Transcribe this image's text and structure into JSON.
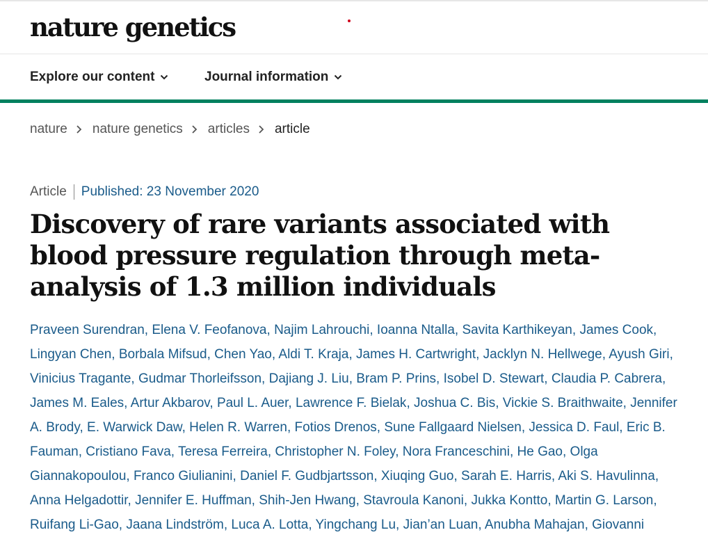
{
  "header": {
    "logo_text": "nature genetics"
  },
  "nav": {
    "items": [
      {
        "label": "Explore our content"
      },
      {
        "label": "Journal information"
      }
    ]
  },
  "breadcrumb": {
    "items": [
      {
        "label": "nature"
      },
      {
        "label": "nature genetics"
      },
      {
        "label": "articles"
      },
      {
        "label": "article"
      }
    ]
  },
  "article": {
    "type": "Article",
    "published": "Published: 23 November 2020",
    "title": "Discovery of rare variants associated with blood pressure regulation through meta-analysis of 1.3 million individuals",
    "authors": [
      "Praveen Surendran",
      "Elena V. Feofanova",
      "Najim Lahrouchi",
      "Ioanna Ntalla",
      "Savita Karthikeyan",
      "James Cook",
      "Lingyan Chen",
      "Borbala Mifsud",
      "Chen Yao",
      "Aldi T. Kraja",
      "James H. Cartwright",
      "Jacklyn N. Hellwege",
      "Ayush Giri",
      "Vinicius Tragante",
      "Gudmar Thorleifsson",
      "Dajiang J. Liu",
      "Bram P. Prins",
      "Isobel D. Stewart",
      "Claudia P. Cabrera",
      "James M. Eales",
      "Artur Akbarov",
      "Paul L. Auer",
      "Lawrence F. Bielak",
      "Joshua C. Bis",
      "Vickie S. Braithwaite",
      "Jennifer A. Brody",
      "E. Warwick Daw",
      "Helen R. Warren",
      "Fotios Drenos",
      "Sune Fallgaard Nielsen",
      "Jessica D. Faul",
      "Eric B. Fauman",
      "Cristiano Fava",
      "Teresa Ferreira",
      "Christopher N. Foley",
      "Nora Franceschini",
      "He Gao",
      "Olga Giannakopoulou",
      "Franco Giulianini",
      "Daniel F. Gudbjartsson",
      "Xiuqing Guo",
      "Sarah E. Harris",
      "Aki S. Havulinna",
      "Anna Helgadottir",
      "Jennifer E. Huffman",
      "Shih-Jen Hwang",
      "Stavroula Kanoni",
      "Jukka Kontto",
      "Martin G. Larson",
      "Ruifang Li-Gao",
      "Jaana Lindström",
      "Luca A. Lotta",
      "Yingchang Lu",
      "Jian’an Luan",
      "Anubha Mahajan",
      "Giovanni"
    ]
  },
  "colors": {
    "accent_green": "#00805f",
    "link_blue": "#1a5b8a",
    "red_dot": "#d0021b"
  }
}
